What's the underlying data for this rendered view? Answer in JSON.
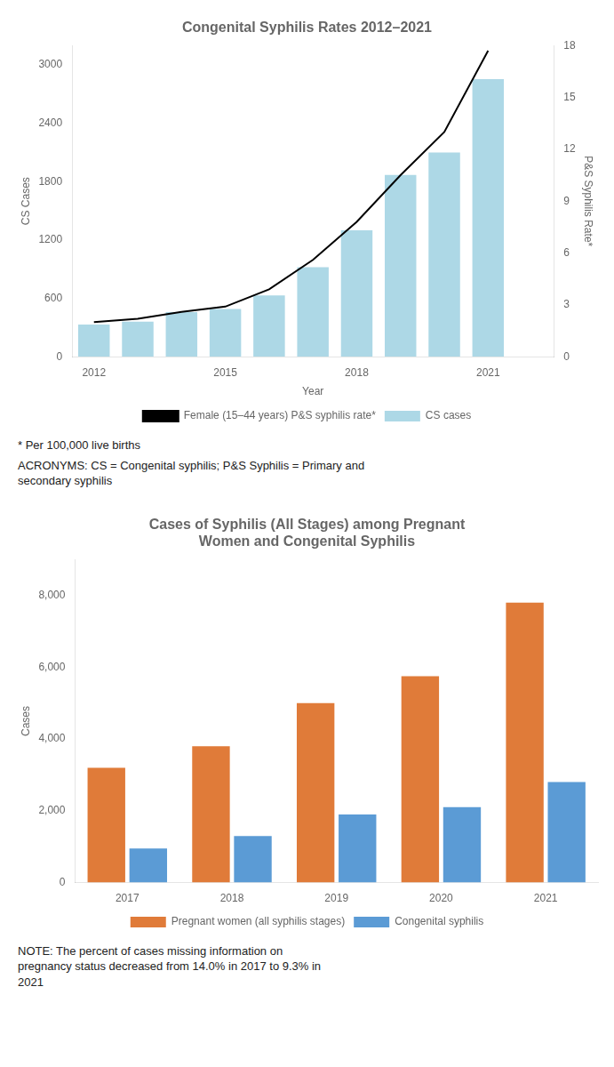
{
  "chart_data": [
    {
      "type": "bar",
      "title": "Congenital Syphilis Rates 2012–2021",
      "x": [
        2012,
        2013,
        2014,
        2015,
        2016,
        2017,
        2018,
        2019,
        2020,
        2021
      ],
      "xlim": [
        2011.5,
        2022.5
      ],
      "xticks": [
        2012,
        2015,
        2018,
        2021
      ],
      "x_label": "Year",
      "y_label": "CS Cases",
      "y2_label": "P&S Syphilis Rate*",
      "ylim": [
        0,
        3200
      ],
      "yticks": [
        0,
        600,
        1200,
        1800,
        2400,
        3000
      ],
      "y2lim": [
        0,
        18
      ],
      "y2ticks": [
        0,
        3,
        6,
        9,
        12,
        15,
        18
      ],
      "series": [
        {
          "name": "CS cases",
          "type": "bar",
          "color": "#add8e6",
          "values": [
            330,
            360,
            460,
            490,
            630,
            920,
            1300,
            1870,
            2100,
            2855
          ]
        },
        {
          "name": "Female (15–44 years) P&S syphilis rate*",
          "type": "line",
          "axis": "y2",
          "color": "black",
          "line_style": "solid",
          "marker": "none",
          "values": [
            2.0,
            2.2,
            2.6,
            2.9,
            3.9,
            5.6,
            7.8,
            10.5,
            13.0,
            17.7
          ]
        }
      ],
      "grid": false,
      "legend": "bottom",
      "annotations": [
        "* Per 100,000 live births",
        "ACRONYMS: CS = Congenital syphilis; P&S Syphilis = Primary and\nsecondary syphilis"
      ]
    },
    {
      "type": "bar",
      "title": "Cases of Syphilis (All Stages) among Pregnant\nWomen and Congenital Syphilis",
      "categories": [
        "2017",
        "2018",
        "2019",
        "2020",
        "2021"
      ],
      "y_label": "Cases",
      "ylim": [
        0,
        9000
      ],
      "yticks": [
        0,
        {
          "value": 2000,
          "label": "2,000"
        },
        {
          "value": 4000,
          "label": "4,000"
        },
        {
          "value": 6000,
          "label": "6,000"
        },
        {
          "value": 8000,
          "label": "8,000"
        }
      ],
      "series": [
        {
          "name": "Pregnant women (all syphilis stages)",
          "color": "#e07b39",
          "values": [
            3200,
            3800,
            5000,
            5750,
            7800
          ]
        },
        {
          "name": "Congenital syphilis",
          "color": "#5b9bd5",
          "values": [
            950,
            1300,
            1900,
            2100,
            2800
          ]
        }
      ],
      "grid": false,
      "legend": "bottom",
      "annotations": [
        "NOTE: The percent of cases missing information on\npregnancy status decreased from 14.0% in 2017 to 9.3% in\n2021"
      ]
    }
  ]
}
